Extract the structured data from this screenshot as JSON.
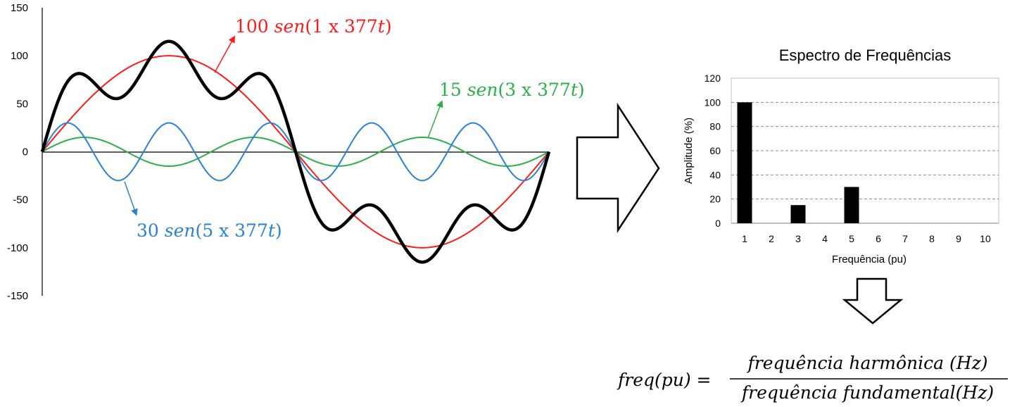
{
  "chart_data": [
    {
      "type": "line",
      "y_ticks": [
        "150",
        "100",
        "50",
        "0",
        "-50",
        "-100",
        "-150"
      ],
      "ylim": [
        -150,
        150
      ],
      "x_period_fraction": [
        0,
        1
      ],
      "series": [
        {
          "color": "#ff1a1a",
          "amplitude": 100,
          "harmonic": 1
        },
        {
          "color": "#2ab04a",
          "amplitude": 15,
          "harmonic": 3
        },
        {
          "color": "#2a82d2",
          "amplitude": 30,
          "harmonic": 5
        },
        {
          "color": "#000000",
          "composite": true,
          "components": [
            [
              100,
              1
            ],
            [
              15,
              3
            ],
            [
              30,
              5
            ]
          ]
        }
      ],
      "annotations": [
        {
          "name": "red-label",
          "color": "#ff1a1a",
          "amp": "100",
          "word": "sen",
          "arg": "(1 x 377",
          "var": "t",
          "close": ")"
        },
        {
          "name": "green-label",
          "color": "#2ab04a",
          "amp": "15",
          "word": "sen",
          "arg": "(3 x 377",
          "var": "t",
          "close": ")"
        },
        {
          "name": "blue-label",
          "color": "#2a82d2",
          "amp": "30",
          "word": "sen",
          "arg": "(5 x 377",
          "var": "t",
          "close": ")"
        }
      ]
    },
    {
      "type": "bar",
      "title": "Espectro de Frequências",
      "xlabel": "Frequência (pu)",
      "ylabel": "Amplitude (%)",
      "categories": [
        "1",
        "2",
        "3",
        "4",
        "5",
        "6",
        "7",
        "8",
        "9",
        "10"
      ],
      "values": [
        100,
        0,
        15,
        0,
        30,
        0,
        0,
        0,
        0,
        0
      ],
      "ylim": [
        0,
        120
      ],
      "y_ticks": [
        "0",
        "20",
        "40",
        "60",
        "80",
        "100",
        "120"
      ],
      "bar_color": "#000000",
      "grid": "dashed horizontal"
    }
  ],
  "formula": {
    "lhs": "freq(pu) =",
    "numerator": "frequência harmônica (Hz)",
    "denominator": "frequência fundamental(Hz)"
  },
  "icons": [
    "right-arrow-icon",
    "down-arrow-icon"
  ]
}
